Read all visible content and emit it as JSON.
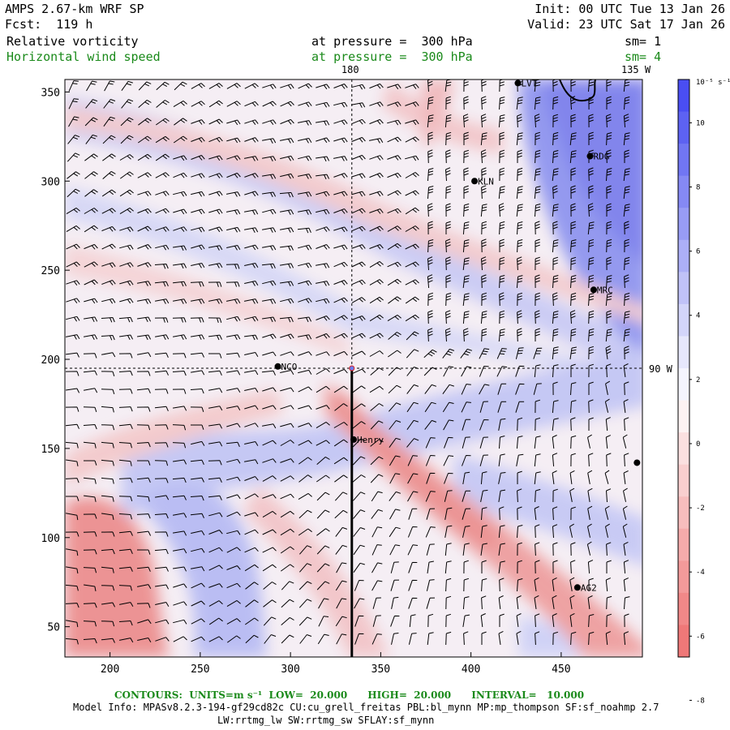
{
  "header": {
    "model": "AMPS 2.67-km WRF SP",
    "fcst": "Fcst:  119 h",
    "init": "Init: 00 UTC Tue 13 Jan 26",
    "valid": "Valid: 23 UTC Sat 17 Jan 26",
    "field1_name": "Relative vorticity",
    "field1_level": "at pressure =  300 hPa",
    "field1_sm": "sm= 1",
    "field2_name": "Horizontal wind speed",
    "field2_level": "at pressure =  300 hPa",
    "field2_sm": "sm= 4"
  },
  "map": {
    "x_range": [
      175,
      495
    ],
    "y_range": [
      33,
      357
    ],
    "x_ticks": [
      200,
      250,
      300,
      350,
      400,
      450
    ],
    "y_ticks": [
      50,
      100,
      150,
      200,
      250,
      300,
      350
    ],
    "lon_label_180": "180",
    "lon_label_135": "135 W",
    "lat_label_90": "90 W",
    "crosshair": {
      "x": 334,
      "y": 195
    },
    "cross_section_line": {
      "x": 334,
      "y_from": 195,
      "y_to": 33
    },
    "stations": [
      {
        "name": "LVT",
        "x": 426,
        "y": 355
      },
      {
        "name": "RDG",
        "x": 466,
        "y": 314
      },
      {
        "name": "KLN",
        "x": 402,
        "y": 300
      },
      {
        "name": "MRC",
        "x": 468,
        "y": 239
      },
      {
        "name": "NCO",
        "x": 293,
        "y": 196
      },
      {
        "name": "Henry",
        "x": 335,
        "y": 155
      },
      {
        "name": "AG2",
        "x": 459,
        "y": 72
      },
      {
        "name": "",
        "x": 492,
        "y": 142
      }
    ]
  },
  "colorbar": {
    "unit": "10⁻⁵ s⁻¹",
    "labels": [
      "10",
      "8",
      "6",
      "4",
      "2",
      "0",
      "-2",
      "-4",
      "-6",
      "-8"
    ],
    "colors": [
      "#4a4ef2",
      "#5d62f2",
      "#7176f3",
      "#8589f4",
      "#989cf5",
      "#acaff7",
      "#c0c2f8",
      "#d3d5fa",
      "#e6e7fc",
      "#f4f4fe",
      "#fdf2f2",
      "#fbe0e0",
      "#f9cfcf",
      "#f7bdbd",
      "#f5abab",
      "#f39a9a",
      "#f18888",
      "#ef7878"
    ]
  },
  "footer": {
    "contours": "CONTOURS:  UNITS=m s⁻¹  LOW=  20.000      HIGH=  20.000      INTERVAL=   10.000",
    "model_info": "Model Info: MPASv8.2.3-194-gf29cd82c CU:cu_grell_freitas PBL:bl_mynn MP:mp_thompson SF:sf_noahmp 2.7",
    "model_info2": "LW:rrtmg_lw SW:rrtmg_sw SFLAY:sf_mynn"
  }
}
